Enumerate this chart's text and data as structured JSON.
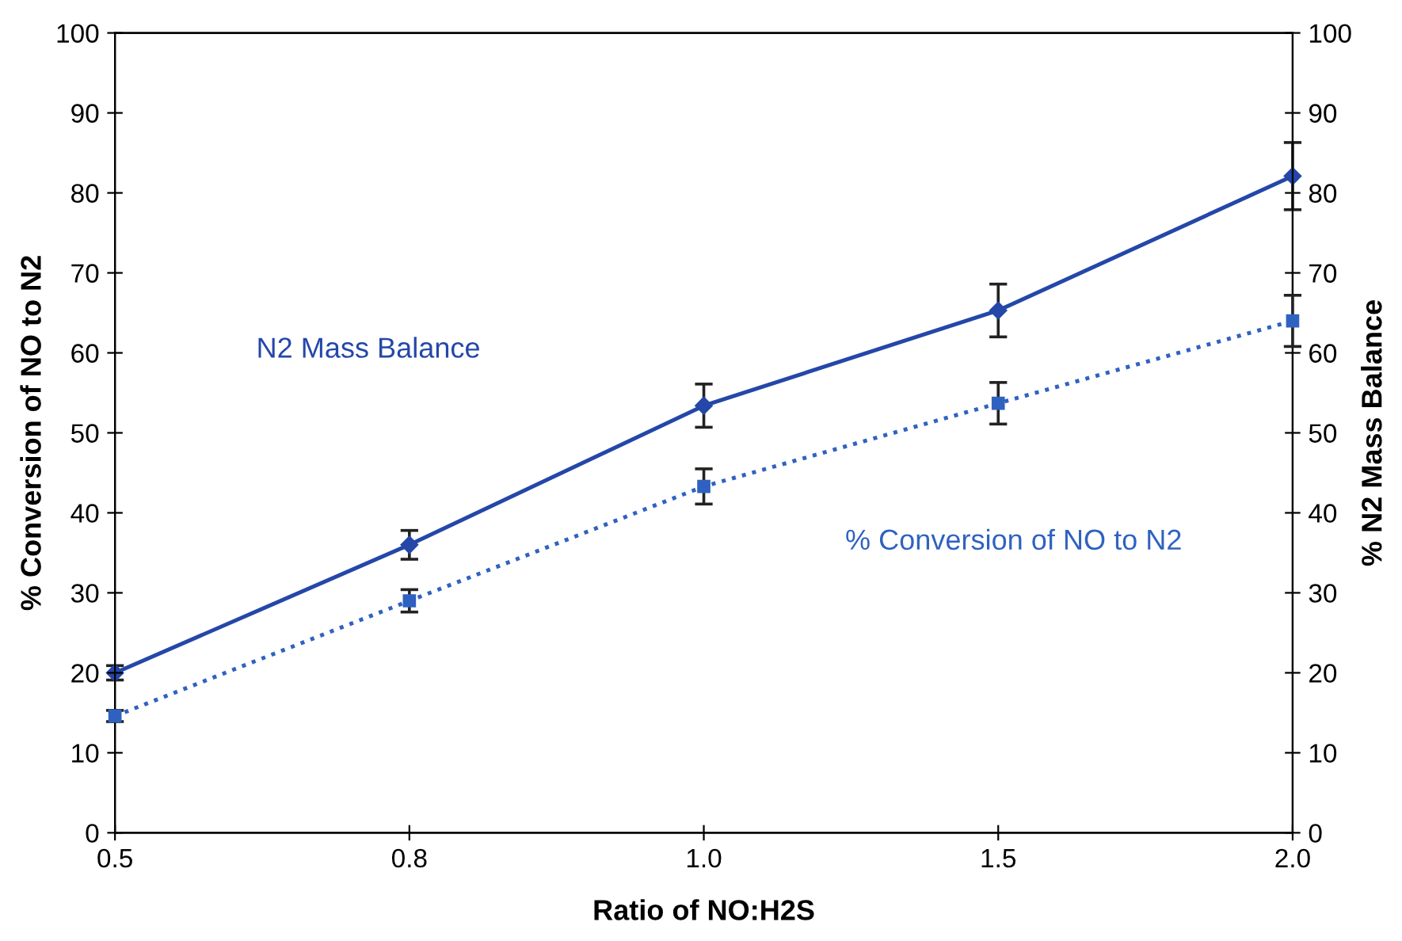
{
  "chart_data": {
    "type": "line",
    "xlabel": "Ratio of NO:H2S",
    "ylabel": "% Conversion of NO to N2",
    "y2label": "% N2 Mass Balance",
    "categories": [
      "0.5",
      "0.8",
      "1.0",
      "1.5",
      "2.0"
    ],
    "ylim": [
      0,
      100
    ],
    "yticks": [
      0,
      10,
      20,
      30,
      40,
      50,
      60,
      70,
      80,
      90,
      100
    ],
    "y2lim": [
      0,
      100
    ],
    "y2ticks": [
      0,
      10,
      20,
      30,
      40,
      50,
      60,
      70,
      80,
      90,
      100
    ],
    "grid": false,
    "legend": false,
    "series": [
      {
        "name": "N2 Mass Balance",
        "axis": "y2",
        "color": "#2447a8",
        "marker": "diamond",
        "line_style": "solid",
        "values": [
          20,
          36,
          53.4,
          65.3,
          82.1
        ],
        "errors": [
          0.9,
          1.8,
          2.7,
          3.3,
          4.2
        ]
      },
      {
        "name": "% Conversion of NO to N2",
        "axis": "y",
        "color": "#2f62c0",
        "marker": "square",
        "line_style": "dotted",
        "values": [
          14.6,
          29,
          43.3,
          53.7,
          64
        ],
        "errors": [
          0.7,
          1.4,
          2.2,
          2.6,
          3.2
        ]
      }
    ]
  }
}
